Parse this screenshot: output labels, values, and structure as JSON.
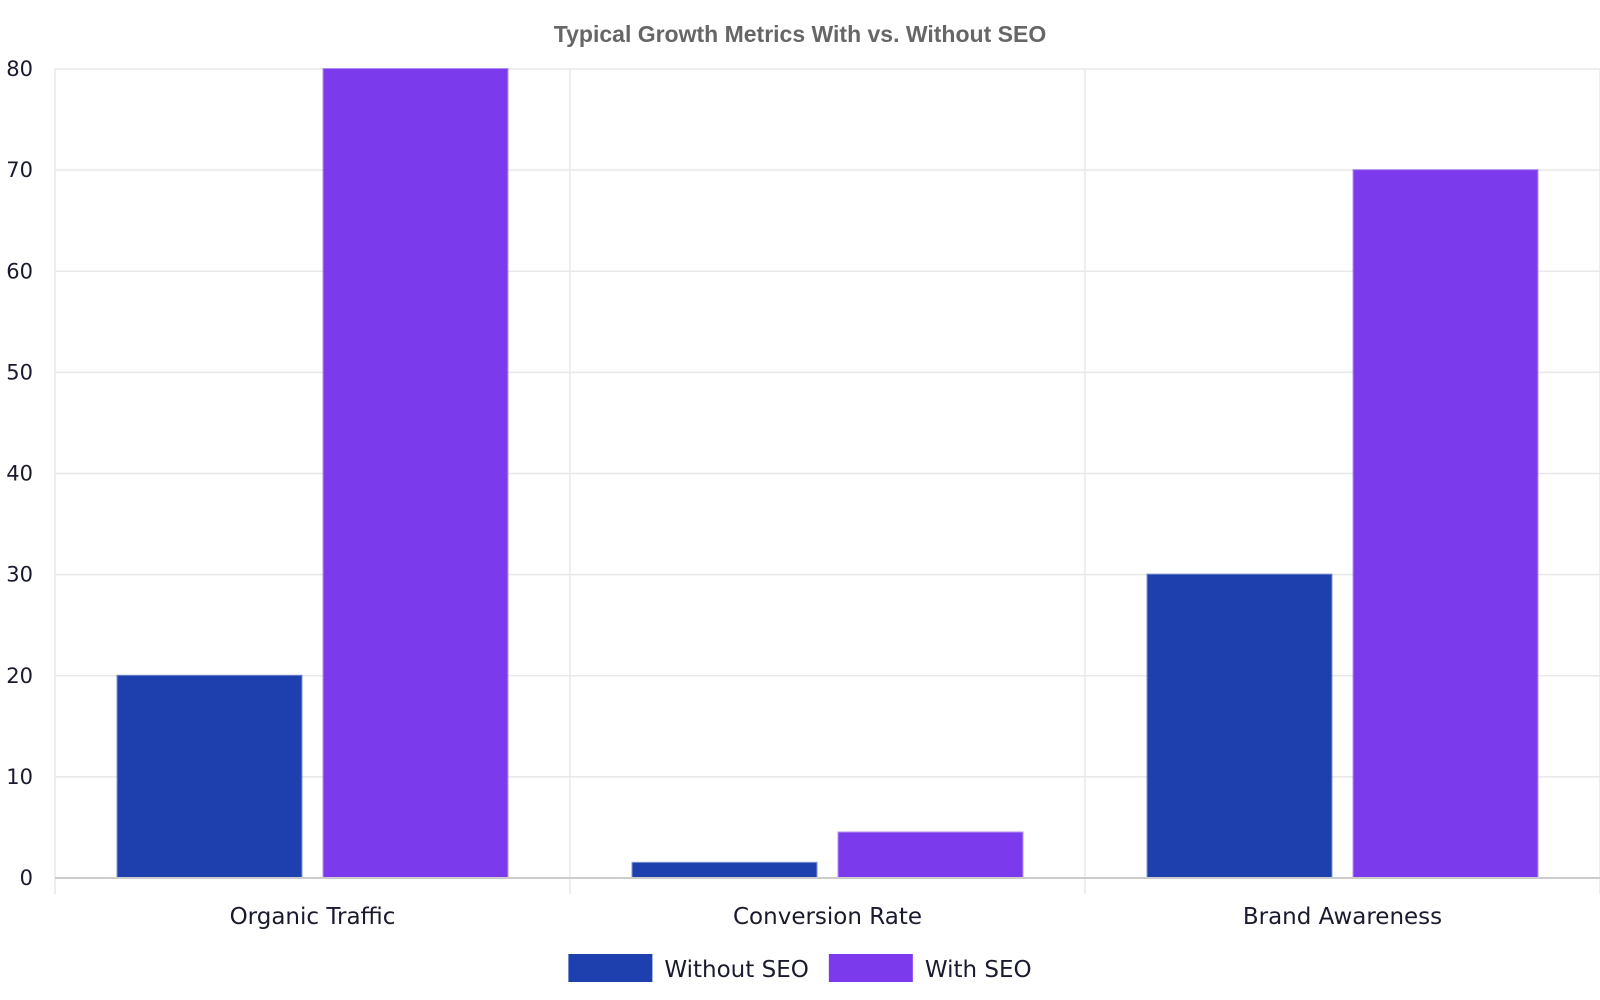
{
  "chart_data": {
    "type": "bar",
    "title": "Typical Growth Metrics With vs. Without SEO",
    "xlabel": "",
    "ylabel": "",
    "categories": [
      "Organic Traffic",
      "Conversion Rate",
      "Brand Awareness"
    ],
    "series": [
      {
        "name": "Without SEO",
        "values": [
          20,
          1.5,
          30
        ],
        "color": "#1e40af"
      },
      {
        "name": "With SEO",
        "values": [
          80,
          4.5,
          70
        ],
        "color": "#7c3aed"
      }
    ],
    "ylim": [
      0,
      80
    ],
    "yticks": [
      0,
      10,
      20,
      30,
      40,
      50,
      60,
      70,
      80
    ],
    "grid": true,
    "legend_position": "bottom-center"
  }
}
